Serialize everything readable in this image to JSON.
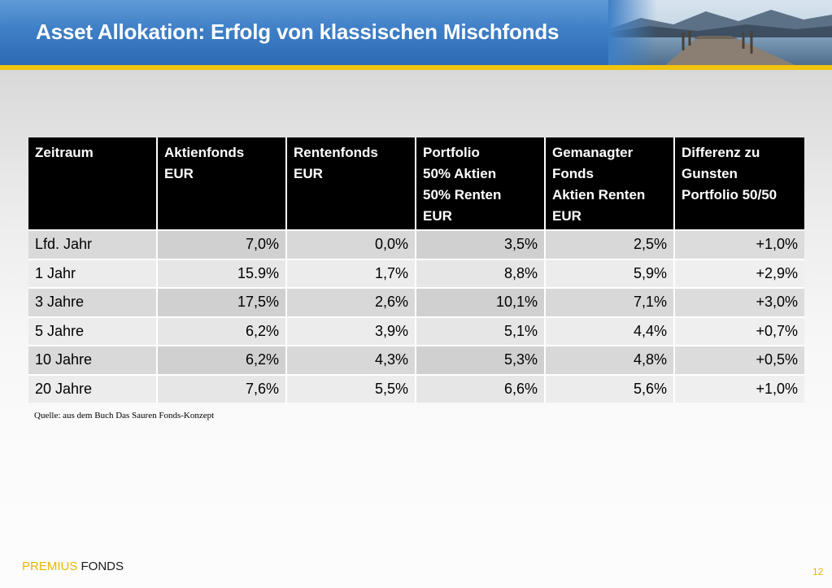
{
  "slide": {
    "title": "Asset Allokation: Erfolg von klassischen Mischfonds",
    "source_note": "Quelle: aus dem Buch Das Sauren Fonds-Konzept",
    "brand": {
      "part1": "PREMIUS",
      "part2": " FONDS"
    },
    "page_number": "12",
    "colors": {
      "header": "#3f7fc6",
      "accent_stripe": "#f1c40f",
      "brand_yellow": "#e6b800"
    }
  },
  "table": {
    "headers": [
      [
        "Zeitraum"
      ],
      [
        "Aktienfonds",
        "EUR"
      ],
      [
        "Rentenfonds",
        "EUR"
      ],
      [
        "Portfolio",
        "50% Aktien",
        "50% Renten",
        "EUR"
      ],
      [
        "Gemanagter",
        "Fonds",
        "Aktien Renten",
        "EUR"
      ],
      [
        "Differenz zu",
        "Gunsten",
        "Portfolio 50/50"
      ]
    ],
    "rows": [
      [
        "Lfd. Jahr",
        "7,0%",
        "0,0%",
        "3,5%",
        "2,5%",
        "+1,0%"
      ],
      [
        "1 Jahr",
        "15.9%",
        "1,7%",
        "8,8%",
        "5,9%",
        "+2,9%"
      ],
      [
        "3 Jahre",
        "17,5%",
        "2,6%",
        "10,1%",
        "7,1%",
        "+3,0%"
      ],
      [
        "5 Jahre",
        "6,2%",
        "3,9%",
        "5,1%",
        "4,4%",
        "+0,7%"
      ],
      [
        "10 Jahre",
        "6,2%",
        "4,3%",
        "5,3%",
        "4,8%",
        "+0,5%"
      ],
      [
        "20 Jahre",
        "7,6%",
        "5,5%",
        "6,6%",
        "5,6%",
        "+1,0%"
      ]
    ]
  }
}
